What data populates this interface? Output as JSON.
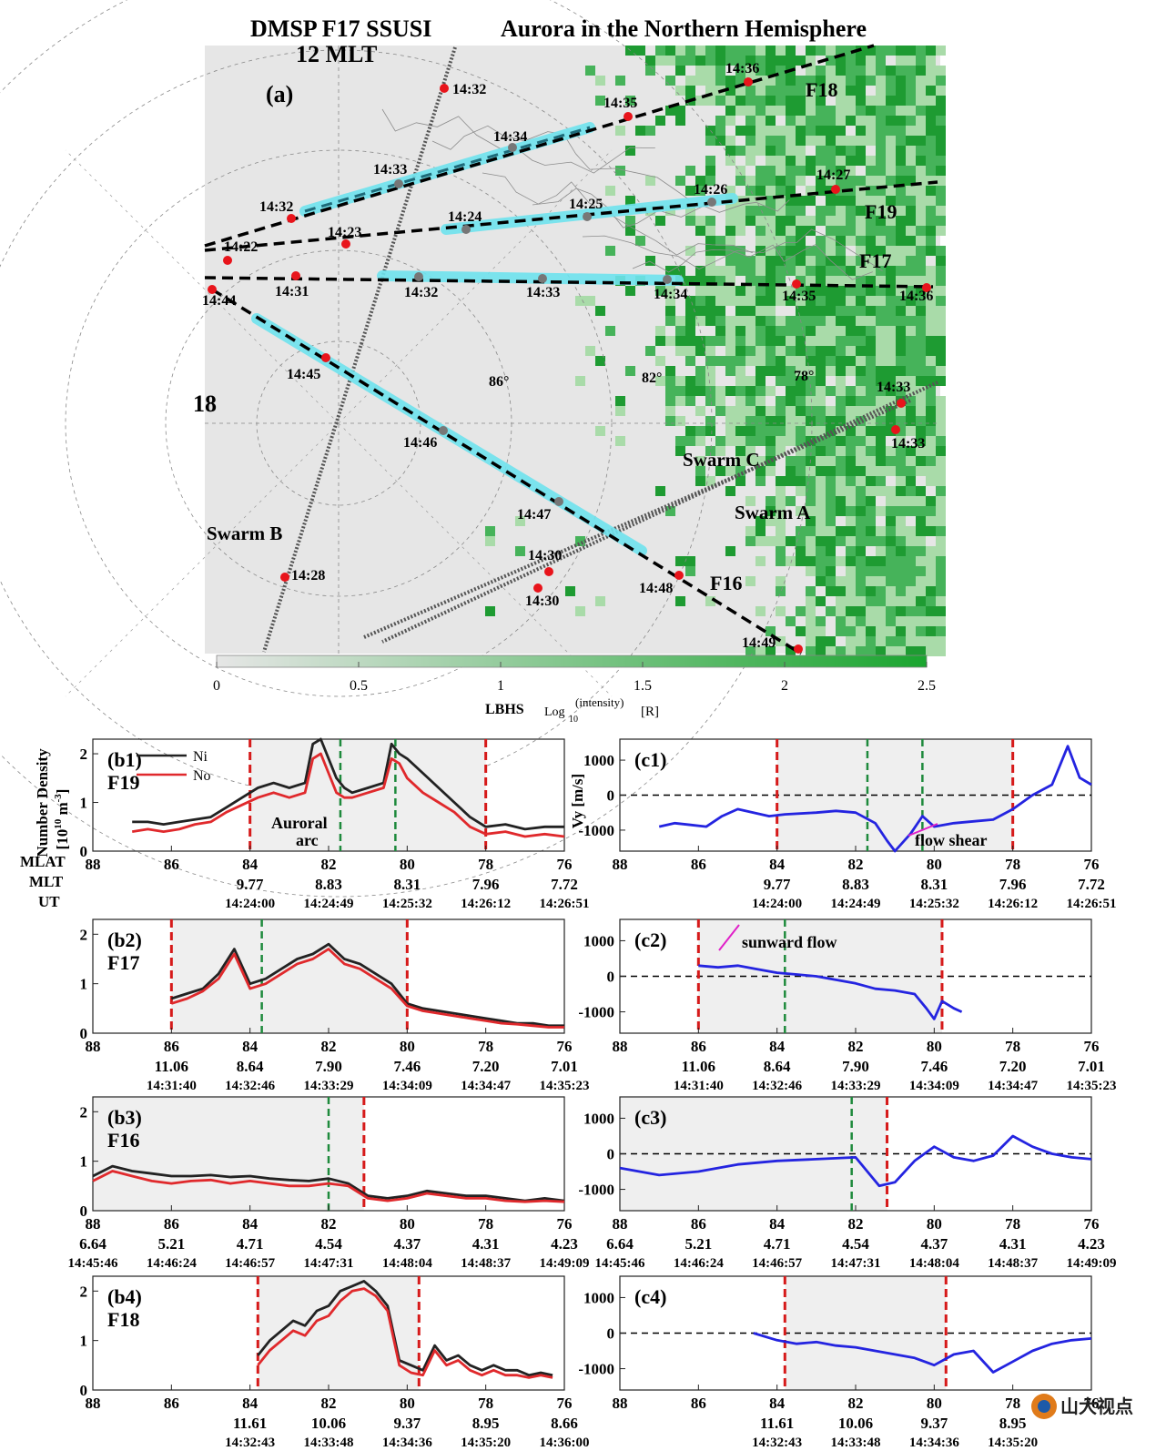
{
  "title": {
    "left": "DMSP  F17  SSUSI",
    "right": "Aurora in the Northern Hemisphere"
  },
  "map": {
    "panel_label": "(a)",
    "mlt12": "12 MLT",
    "mlt18": "18",
    "lat_labels": [
      "86°",
      "82°",
      "78°"
    ],
    "sat_labels": [
      "F18",
      "F19",
      "F17",
      "F16",
      "Swarm C",
      "Swarm A",
      "Swarm B"
    ],
    "times": [
      "14:32",
      "14:36",
      "14:35",
      "14:34",
      "14:33",
      "14:32",
      "14:26",
      "14:27",
      "14:25",
      "14:24",
      "14:23",
      "14:22",
      "14:31",
      "14:32",
      "14:33",
      "14:34",
      "14:35",
      "14:36",
      "14:44",
      "14:45",
      "14:46",
      "14:47",
      "14:48",
      "14:49",
      "14:33",
      "14:33",
      "14:30",
      "14:30",
      "14:28"
    ],
    "colorbar": {
      "ticks": [
        "0",
        "0.5",
        "1",
        "1.5",
        "2",
        "2.5"
      ],
      "label_main": "LBHS",
      "label_log": "Log",
      "label_sub": "10",
      "label_sup": "(intensity)",
      "label_unit": "[R]",
      "colors": [
        "#e6e6e6",
        "#1aa52f"
      ]
    }
  },
  "left_axis": {
    "ylabel1": "Number Density",
    "ylabel2": "[10",
    "ylabel_exp": "10",
    "ylabel3": " m",
    "ylabel_exp2": "-3",
    "ylabel4": "]",
    "row_labels": [
      "MLAT",
      "MLT",
      "UT"
    ],
    "legend": [
      "Ni",
      "No"
    ],
    "annotation": [
      "Auroral",
      "arc"
    ]
  },
  "right_axis": {
    "ylabel": "Vy [m/s]",
    "annotations": [
      "flow shear",
      "sunward flow"
    ]
  },
  "chart_data": [
    {
      "type": "line",
      "panel": "(b1)",
      "sat": "F19",
      "x_mlat": [
        87.0,
        86.6,
        86.2,
        85.8,
        85.4,
        85.0,
        84.6,
        84.2,
        83.8,
        83.4,
        83.0,
        82.6,
        82.4,
        82.2,
        82.0,
        81.8,
        81.6,
        81.4,
        81.0,
        80.6,
        80.4,
        80.2,
        80.0,
        79.6,
        79.2,
        78.8,
        78.4,
        78.0,
        77.5,
        77.0,
        76.5,
        76.0
      ],
      "series": [
        {
          "name": "Ni",
          "values": [
            0.6,
            0.6,
            0.55,
            0.6,
            0.65,
            0.7,
            0.9,
            1.1,
            1.3,
            1.4,
            1.3,
            1.4,
            2.2,
            2.3,
            1.9,
            1.5,
            1.3,
            1.2,
            1.3,
            1.4,
            2.2,
            2.0,
            1.9,
            1.6,
            1.3,
            1.0,
            0.7,
            0.5,
            0.55,
            0.45,
            0.5,
            0.5
          ]
        },
        {
          "name": "No",
          "values": [
            0.4,
            0.45,
            0.4,
            0.45,
            0.55,
            0.6,
            0.8,
            0.95,
            1.1,
            1.2,
            1.1,
            1.2,
            1.9,
            2.0,
            1.6,
            1.2,
            1.1,
            1.1,
            1.2,
            1.3,
            1.9,
            1.8,
            1.5,
            1.2,
            1.0,
            0.8,
            0.5,
            0.35,
            0.4,
            0.3,
            0.35,
            0.3
          ]
        }
      ],
      "ylim": [
        0,
        2.3
      ],
      "yticks": [
        "2",
        "1",
        "0"
      ],
      "xlim": [
        88,
        76
      ],
      "mlat_ticks": [
        "88",
        "86",
        "84",
        "82",
        "80",
        "78",
        "76"
      ],
      "mlt_ticks": [
        "9.77",
        "8.83",
        "8.31",
        "7.96",
        "7.72"
      ],
      "ut_ticks": [
        "14:24:00",
        "14:24:49",
        "14:25:32",
        "14:26:12",
        "14:26:51"
      ],
      "red_lines": [
        84.0,
        78.0
      ],
      "green_lines": [
        81.7,
        80.3
      ],
      "shaded": [
        84.0,
        78.0
      ]
    },
    {
      "type": "line",
      "panel": "(b2)",
      "sat": "F17",
      "x_mlat": [
        86.0,
        85.6,
        85.2,
        84.8,
        84.4,
        84.0,
        83.6,
        83.2,
        82.8,
        82.4,
        82.0,
        81.6,
        81.2,
        80.8,
        80.4,
        80.0,
        79.6,
        79.2,
        78.8,
        78.4,
        78.0,
        77.6,
        77.2,
        76.8,
        76.4,
        76.0
      ],
      "series": [
        {
          "name": "Ni",
          "values": [
            0.7,
            0.8,
            0.9,
            1.2,
            1.7,
            1.0,
            1.1,
            1.3,
            1.5,
            1.6,
            1.8,
            1.5,
            1.4,
            1.2,
            1.0,
            0.6,
            0.5,
            0.45,
            0.4,
            0.35,
            0.3,
            0.25,
            0.2,
            0.2,
            0.15,
            0.15
          ]
        },
        {
          "name": "No",
          "values": [
            0.6,
            0.7,
            0.85,
            1.1,
            1.6,
            0.9,
            1.0,
            1.2,
            1.4,
            1.5,
            1.7,
            1.4,
            1.3,
            1.1,
            0.9,
            0.55,
            0.45,
            0.4,
            0.35,
            0.3,
            0.25,
            0.2,
            0.18,
            0.15,
            0.12,
            0.12
          ]
        }
      ],
      "ylim": [
        0,
        2.3
      ],
      "yticks": [
        "2",
        "1",
        "0"
      ],
      "xlim": [
        88,
        76
      ],
      "mlat_ticks": [
        "88",
        "86",
        "84",
        "82",
        "80",
        "78",
        "76"
      ],
      "mlt_ticks": [
        "11.06",
        "8.64",
        "7.90",
        "7.46",
        "7.20",
        "7.01"
      ],
      "ut_ticks": [
        "14:31:40",
        "14:32:46",
        "14:33:29",
        "14:34:09",
        "14:34:47",
        "14:35:23"
      ],
      "red_lines": [
        86.0,
        80.0
      ],
      "green_lines": [
        83.7
      ],
      "shaded": [
        86.0,
        80.0
      ]
    },
    {
      "type": "line",
      "panel": "(b3)",
      "sat": "F16",
      "x_mlat": [
        88.0,
        87.5,
        87.0,
        86.5,
        86.0,
        85.5,
        85.0,
        84.5,
        84.0,
        83.5,
        83.0,
        82.5,
        82.0,
        81.5,
        81.0,
        80.5,
        80.0,
        79.5,
        79.0,
        78.5,
        78.0,
        77.5,
        77.0,
        76.5,
        76.0
      ],
      "series": [
        {
          "name": "Ni",
          "values": [
            0.7,
            0.9,
            0.8,
            0.75,
            0.7,
            0.7,
            0.72,
            0.68,
            0.7,
            0.65,
            0.62,
            0.6,
            0.65,
            0.55,
            0.3,
            0.25,
            0.3,
            0.4,
            0.35,
            0.3,
            0.3,
            0.25,
            0.2,
            0.25,
            0.2
          ]
        },
        {
          "name": "No",
          "values": [
            0.6,
            0.8,
            0.7,
            0.6,
            0.55,
            0.6,
            0.62,
            0.55,
            0.6,
            0.55,
            0.5,
            0.5,
            0.55,
            0.5,
            0.25,
            0.2,
            0.25,
            0.35,
            0.3,
            0.25,
            0.25,
            0.2,
            0.18,
            0.2,
            0.18
          ]
        }
      ],
      "ylim": [
        0,
        2.3
      ],
      "yticks": [
        "2",
        "1",
        "0"
      ],
      "xlim": [
        88,
        76
      ],
      "mlat_ticks": [
        "88",
        "86",
        "84",
        "82",
        "80",
        "78",
        "76"
      ],
      "mlt_ticks": [
        "6.64",
        "5.21",
        "4.71",
        "4.54",
        "4.37",
        "4.31",
        "4.23"
      ],
      "ut_ticks": [
        "14:45:46",
        "14:46:24",
        "14:46:57",
        "14:47:31",
        "14:48:04",
        "14:48:37",
        "14:49:09"
      ],
      "red_lines": [
        81.1
      ],
      "green_lines": [
        82.0
      ],
      "shaded": [
        88.0,
        81.1
      ]
    },
    {
      "type": "line",
      "panel": "(b4)",
      "sat": "F18",
      "x_mlat": [
        83.8,
        83.5,
        83.2,
        82.9,
        82.6,
        82.3,
        82.0,
        81.7,
        81.4,
        81.1,
        80.8,
        80.5,
        80.2,
        79.9,
        79.6,
        79.3,
        79.0,
        78.7,
        78.4,
        78.1,
        77.8,
        77.5,
        77.2,
        76.9,
        76.6,
        76.3
      ],
      "series": [
        {
          "name": "Ni",
          "values": [
            0.7,
            1.0,
            1.2,
            1.4,
            1.3,
            1.6,
            1.7,
            2.0,
            2.1,
            2.2,
            2.0,
            1.7,
            0.6,
            0.5,
            0.4,
            0.9,
            0.6,
            0.7,
            0.5,
            0.4,
            0.5,
            0.4,
            0.4,
            0.3,
            0.35,
            0.3
          ]
        },
        {
          "name": "No",
          "values": [
            0.5,
            0.8,
            1.0,
            1.2,
            1.1,
            1.4,
            1.5,
            1.8,
            2.0,
            2.05,
            1.9,
            1.6,
            0.5,
            0.35,
            0.3,
            0.8,
            0.5,
            0.6,
            0.4,
            0.3,
            0.4,
            0.3,
            0.3,
            0.25,
            0.3,
            0.25
          ]
        }
      ],
      "ylim": [
        0,
        2.3
      ],
      "yticks": [
        "2",
        "1",
        "0"
      ],
      "xlim": [
        88,
        76
      ],
      "mlat_ticks": [
        "88",
        "86",
        "84",
        "82",
        "80",
        "78",
        "76"
      ],
      "mlt_ticks": [
        "11.61",
        "10.06",
        "9.37",
        "8.95",
        "8.66"
      ],
      "ut_ticks": [
        "14:32:43",
        "14:33:48",
        "14:34:36",
        "14:35:20",
        "14:36:00"
      ],
      "red_lines": [
        83.8,
        79.7
      ],
      "green_lines": [],
      "shaded": [
        83.8,
        79.7
      ]
    },
    {
      "type": "line",
      "panel": "(c1)",
      "sat": "F19",
      "x_mlat": [
        87.0,
        86.6,
        86.2,
        85.8,
        85.4,
        85.0,
        84.6,
        84.2,
        83.8,
        83.0,
        82.5,
        82.0,
        81.5,
        81.2,
        81.0,
        80.6,
        80.3,
        80.0,
        79.5,
        79.0,
        78.5,
        78.0,
        77.5,
        77.0,
        76.6,
        76.3,
        76.0
      ],
      "series": [
        {
          "name": "Vy",
          "values": [
            -900,
            -800,
            -850,
            -900,
            -600,
            -400,
            -500,
            -600,
            -550,
            -500,
            -450,
            -500,
            -800,
            -1300,
            -1600,
            -1100,
            -600,
            -900,
            -800,
            -750,
            -700,
            -400,
            0,
            300,
            1400,
            500,
            300
          ]
        }
      ],
      "ylim": [
        -1600,
        1600
      ],
      "yticks": [
        "1000",
        "0",
        "-1000"
      ],
      "xlim": [
        88,
        76
      ],
      "mlat_ticks": [
        "88",
        "86",
        "84",
        "82",
        "80",
        "78",
        "76"
      ],
      "mlt_ticks": [
        "9.77",
        "8.83",
        "8.31",
        "7.96",
        "7.72"
      ],
      "ut_ticks": [
        "14:24:00",
        "14:24:49",
        "14:25:32",
        "14:26:12",
        "14:26:51"
      ],
      "red_lines": [
        84.0,
        78.0
      ],
      "green_lines": [
        81.7,
        80.3
      ],
      "shaded": [
        84.0,
        78.0
      ]
    },
    {
      "type": "line",
      "panel": "(c2)",
      "sat": "F17",
      "x_mlat": [
        86.0,
        85.5,
        85.0,
        84.5,
        84.0,
        83.5,
        83.0,
        82.5,
        82.0,
        81.5,
        81.0,
        80.5,
        80.2,
        80.0,
        79.8,
        79.5,
        79.3
      ],
      "series": [
        {
          "name": "Vy",
          "values": [
            300,
            250,
            300,
            200,
            100,
            50,
            0,
            -100,
            -200,
            -350,
            -400,
            -500,
            -900,
            -1200,
            -700,
            -900,
            -1000
          ]
        }
      ],
      "ylim": [
        -1600,
        1600
      ],
      "yticks": [
        "1000",
        "0",
        "-1000"
      ],
      "xlim": [
        88,
        76
      ],
      "mlat_ticks": [
        "88",
        "86",
        "84",
        "82",
        "80",
        "78",
        "76"
      ],
      "mlt_ticks": [
        "11.06",
        "8.64",
        "7.90",
        "7.46",
        "7.20",
        "7.01"
      ],
      "ut_ticks": [
        "14:31:40",
        "14:32:46",
        "14:33:29",
        "14:34:09",
        "14:34:47",
        "14:35:23"
      ],
      "red_lines": [
        86.0,
        79.8
      ],
      "green_lines": [
        83.8
      ],
      "shaded": [
        86.0,
        79.8
      ]
    },
    {
      "type": "line",
      "panel": "(c3)",
      "sat": "F16",
      "x_mlat": [
        88.0,
        87.0,
        86.0,
        85.0,
        84.0,
        83.0,
        82.0,
        81.7,
        81.4,
        81.0,
        80.5,
        80.0,
        79.5,
        79.0,
        78.5,
        78.0,
        77.5,
        77.0,
        76.5,
        76.0
      ],
      "series": [
        {
          "name": "Vy",
          "values": [
            -400,
            -600,
            -500,
            -300,
            -200,
            -150,
            -100,
            -500,
            -900,
            -800,
            -200,
            200,
            -100,
            -200,
            -50,
            500,
            200,
            0,
            -100,
            -150
          ]
        }
      ],
      "ylim": [
        -1600,
        1600
      ],
      "yticks": [
        "1000",
        "0",
        "-1000"
      ],
      "xlim": [
        88,
        76
      ],
      "mlat_ticks": [
        "88",
        "86",
        "84",
        "82",
        "80",
        "78",
        "76"
      ],
      "mlt_ticks": [
        "6.64",
        "5.21",
        "4.71",
        "4.54",
        "4.37",
        "4.31",
        "4.23"
      ],
      "ut_ticks": [
        "14:45:46",
        "14:46:24",
        "14:46:57",
        "14:47:31",
        "14:48:04",
        "14:48:37",
        "14:49:09"
      ],
      "red_lines": [
        81.2
      ],
      "green_lines": [
        82.1
      ],
      "shaded": [
        88.0,
        81.2
      ]
    },
    {
      "type": "line",
      "panel": "(c4)",
      "sat": "F18",
      "x_mlat": [
        84.6,
        84.0,
        83.5,
        83.0,
        82.5,
        82.0,
        81.5,
        81.0,
        80.5,
        80.0,
        79.5,
        79.0,
        78.5,
        78.0,
        77.5,
        77.0,
        76.5,
        76.0
      ],
      "series": [
        {
          "name": "Vy",
          "values": [
            0,
            -200,
            -300,
            -250,
            -350,
            -400,
            -500,
            -600,
            -700,
            -900,
            -600,
            -500,
            -1100,
            -800,
            -500,
            -300,
            -200,
            -150
          ]
        }
      ],
      "ylim": [
        -1600,
        1600
      ],
      "yticks": [
        "1000",
        "0",
        "-1000"
      ],
      "xlim": [
        88,
        76
      ],
      "mlat_ticks": [
        "88",
        "86",
        "84",
        "82",
        "80",
        "78",
        "76"
      ],
      "mlt_ticks": [
        "11.61",
        "10.06",
        "9.37",
        "8.95"
      ],
      "ut_ticks": [
        "14:32:43",
        "14:33:48",
        "14:34:36",
        "14:35:20"
      ],
      "red_lines": [
        83.8,
        79.7
      ],
      "green_lines": [],
      "shaded": [
        83.8,
        79.7
      ]
    }
  ],
  "watermark": "山大视点"
}
